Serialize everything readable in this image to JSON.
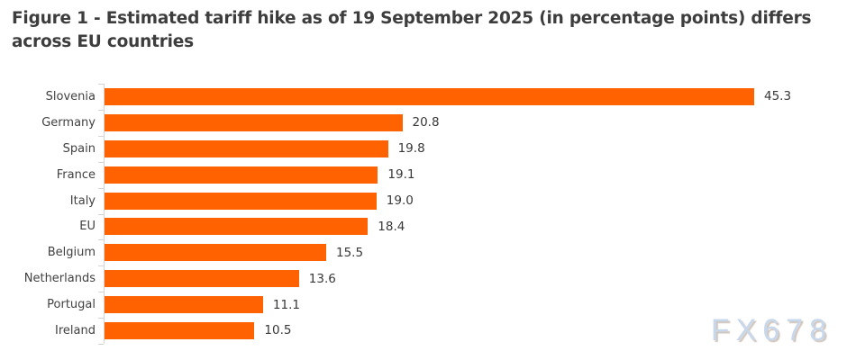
{
  "figure": {
    "title_lines": [
      "Figure 1 - Estimated tariff hike as of 19 September 2025 (in percentage points) differs",
      "across EU countries"
    ]
  },
  "chart_data": {
    "type": "bar",
    "orientation": "horizontal",
    "title": "Figure 1 - Estimated tariff hike as of 19 September 2025 (in percentage points) differs across EU countries",
    "categories": [
      "Slovenia",
      "Germany",
      "Spain",
      "France",
      "Italy",
      "EU",
      "Belgium",
      "Netherlands",
      "Portugal",
      "Ireland"
    ],
    "values": [
      45.3,
      20.8,
      19.8,
      19.1,
      19.0,
      18.4,
      15.5,
      13.6,
      11.1,
      10.5
    ],
    "value_labels": [
      "45.3",
      "20.8",
      "19.8",
      "19.1",
      "19.0",
      "18.4",
      "15.5",
      "13.6",
      "11.1",
      "10.5"
    ],
    "xlabel": "",
    "ylabel": "",
    "xlim": [
      0,
      45.3
    ],
    "grid": false,
    "data_labels": true,
    "legend": false,
    "bar_color": "#FF6200"
  },
  "colors": {
    "title": "#3d3d3d",
    "category_labels": "#414141",
    "value_labels": "#383838",
    "axis": "#d4d4d4",
    "bar": "#FF6200",
    "background": "#ffffff"
  },
  "watermark": {
    "text": "FX678",
    "color": "#c8d8ec"
  }
}
